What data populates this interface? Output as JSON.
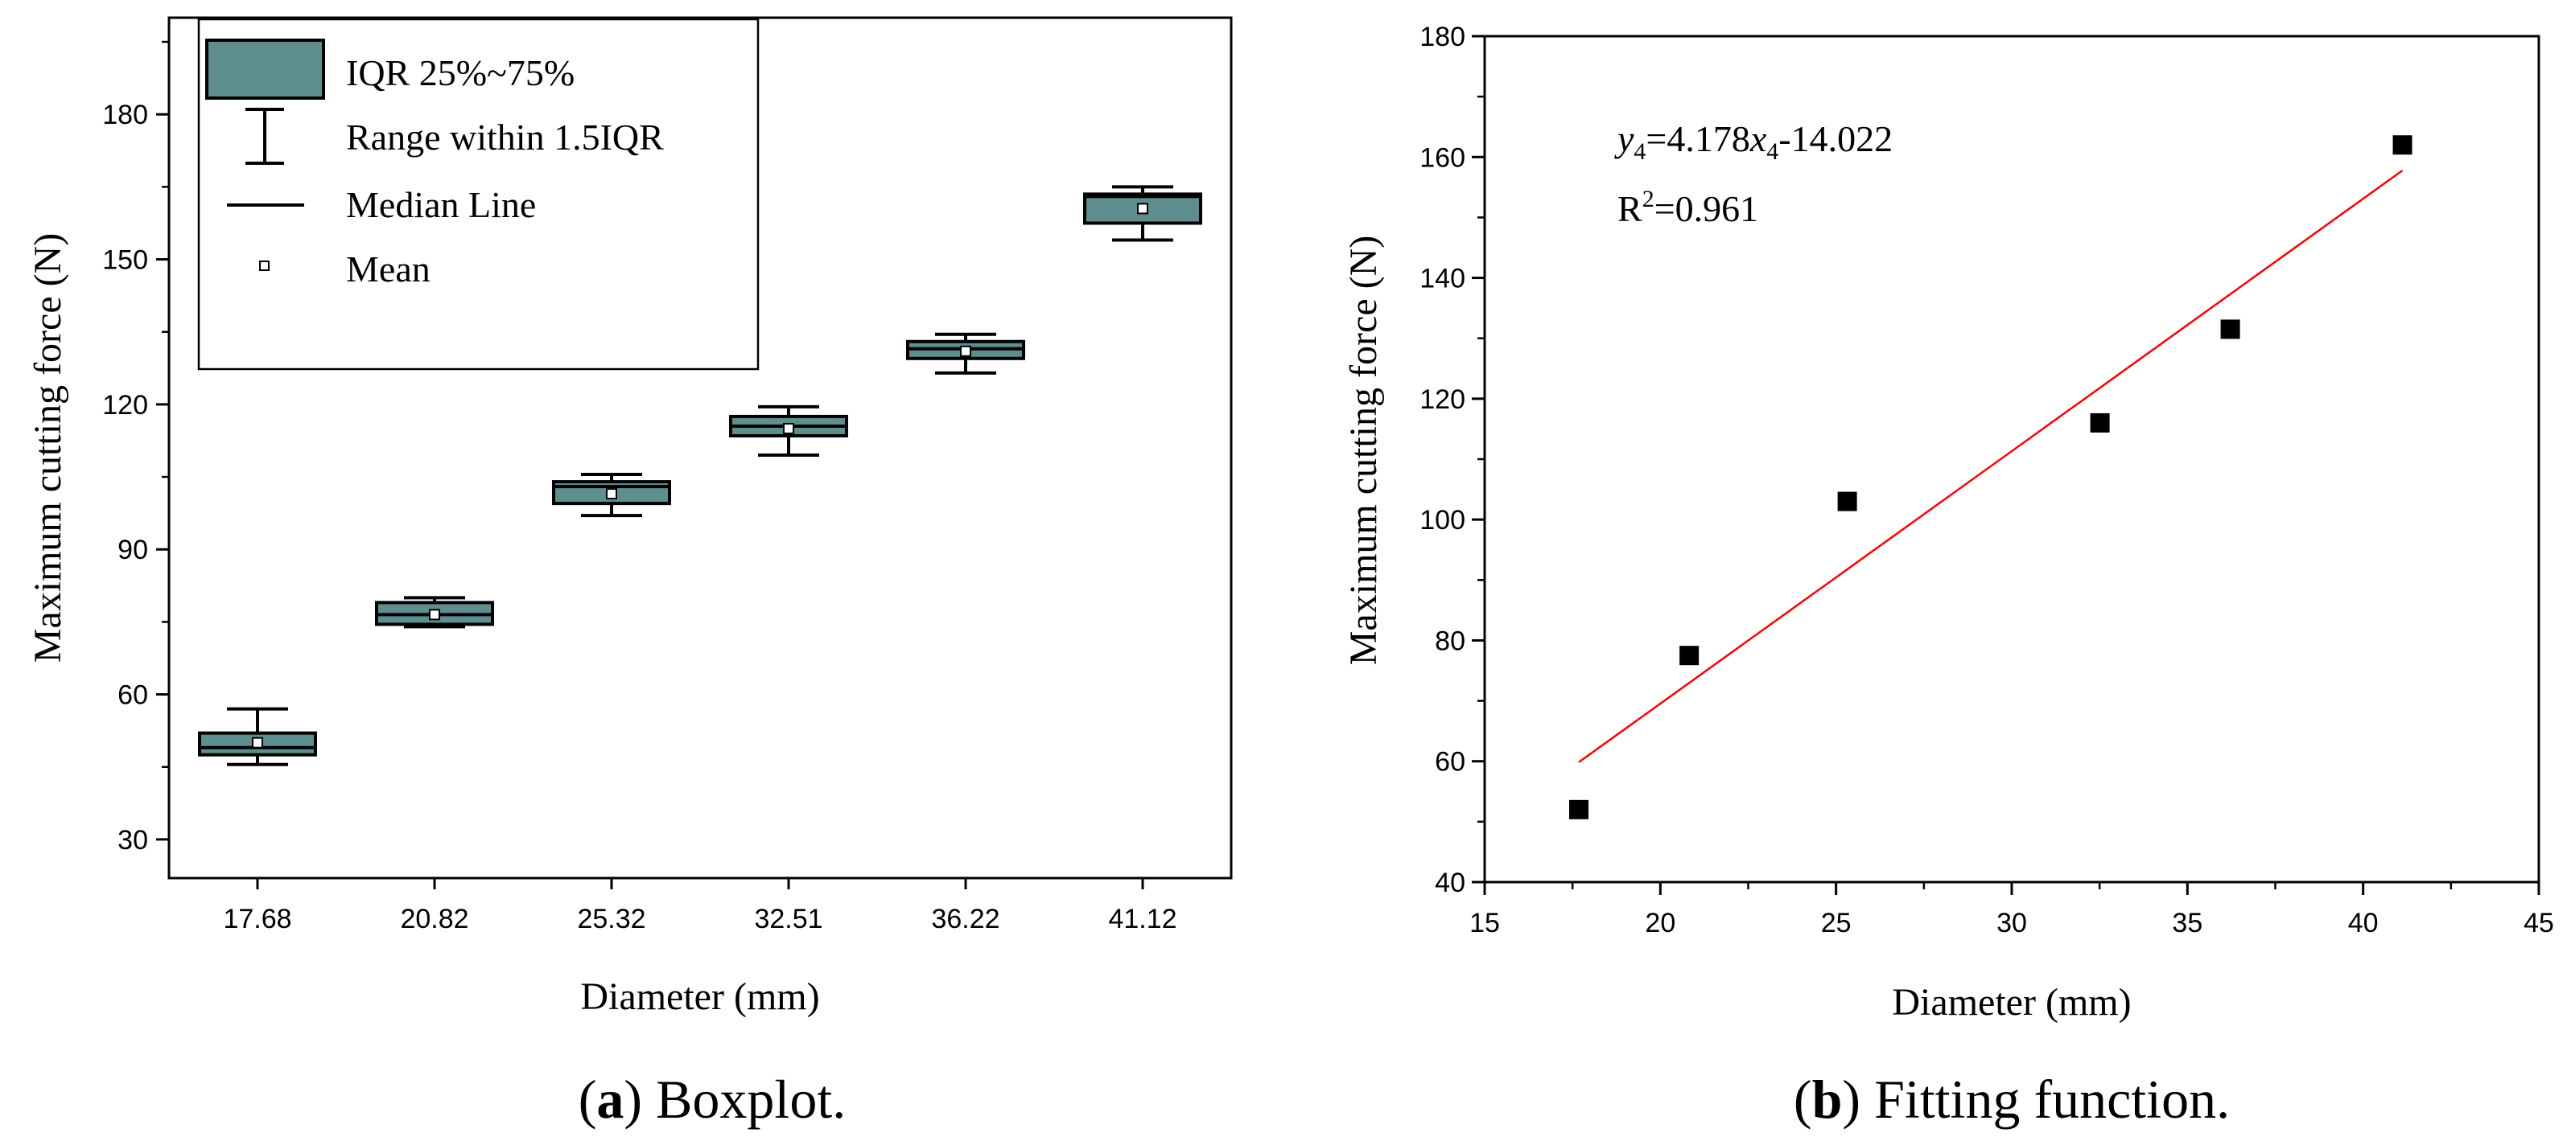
{
  "chart_data": [
    {
      "type": "box",
      "panel": "a",
      "xlabel": "Diameter (mm)",
      "ylabel": "Maximum cutting force (N)",
      "ylim": [
        22,
        200
      ],
      "yticks": [
        30,
        60,
        90,
        120,
        150,
        180
      ],
      "categories": [
        "17.68",
        "20.82",
        "25.32",
        "32.51",
        "36.22",
        "41.12"
      ],
      "boxes": [
        {
          "whisker_low": 45.5,
          "q1": 47.5,
          "median": 49,
          "q3": 52,
          "whisker_high": 57,
          "mean": 50
        },
        {
          "whisker_low": 74,
          "q1": 74.5,
          "median": 76.5,
          "q3": 79,
          "whisker_high": 80,
          "mean": 76.5
        },
        {
          "whisker_low": 97,
          "q1": 99.5,
          "median": 103,
          "q3": 104,
          "whisker_high": 105.5,
          "mean": 101.5
        },
        {
          "whisker_low": 109.5,
          "q1": 113.5,
          "median": 115.5,
          "q3": 117.5,
          "whisker_high": 119.5,
          "mean": 115
        },
        {
          "whisker_low": 126.5,
          "q1": 129.5,
          "median": 131.5,
          "q3": 133,
          "whisker_high": 134.5,
          "mean": 131
        },
        {
          "whisker_low": 154,
          "q1": 157.5,
          "median": 163,
          "q3": 163.5,
          "whisker_high": 165,
          "mean": 160.5
        }
      ],
      "legend": {
        "position": "top-left",
        "entries": [
          "IQR 25%~75%",
          "Range within 1.5IQR",
          "Median Line",
          "Mean"
        ]
      },
      "box_color": "#5e8e8e",
      "caption": {
        "letter": "a",
        "text": " Boxplot."
      }
    },
    {
      "type": "scatter",
      "panel": "b",
      "xlabel": "Diameter (mm)",
      "ylabel": "Maximum cutting force (N)",
      "xlim": [
        15,
        45
      ],
      "ylim": [
        40,
        180
      ],
      "xticks": [
        15,
        20,
        25,
        30,
        35,
        40,
        45
      ],
      "yticks": [
        40,
        60,
        80,
        100,
        120,
        140,
        160,
        180
      ],
      "x": [
        17.68,
        20.82,
        25.32,
        32.51,
        36.22,
        41.12
      ],
      "y": [
        52,
        77.5,
        103,
        116,
        131.5,
        162
      ],
      "fit": {
        "slope": 4.178,
        "intercept": -14.022,
        "x_range": [
          17.68,
          41.12
        ],
        "color": "#ff0000"
      },
      "equation": {
        "y": "y",
        "y_sub": "4",
        "middle": "=4.178",
        "x": "x",
        "x_sub": "4",
        "rest": "-14.022"
      },
      "r_squared": {
        "r": "R",
        "exp": "2",
        "value": "=0.961"
      },
      "caption": {
        "letter": "b",
        "text": " Fitting function."
      }
    }
  ]
}
